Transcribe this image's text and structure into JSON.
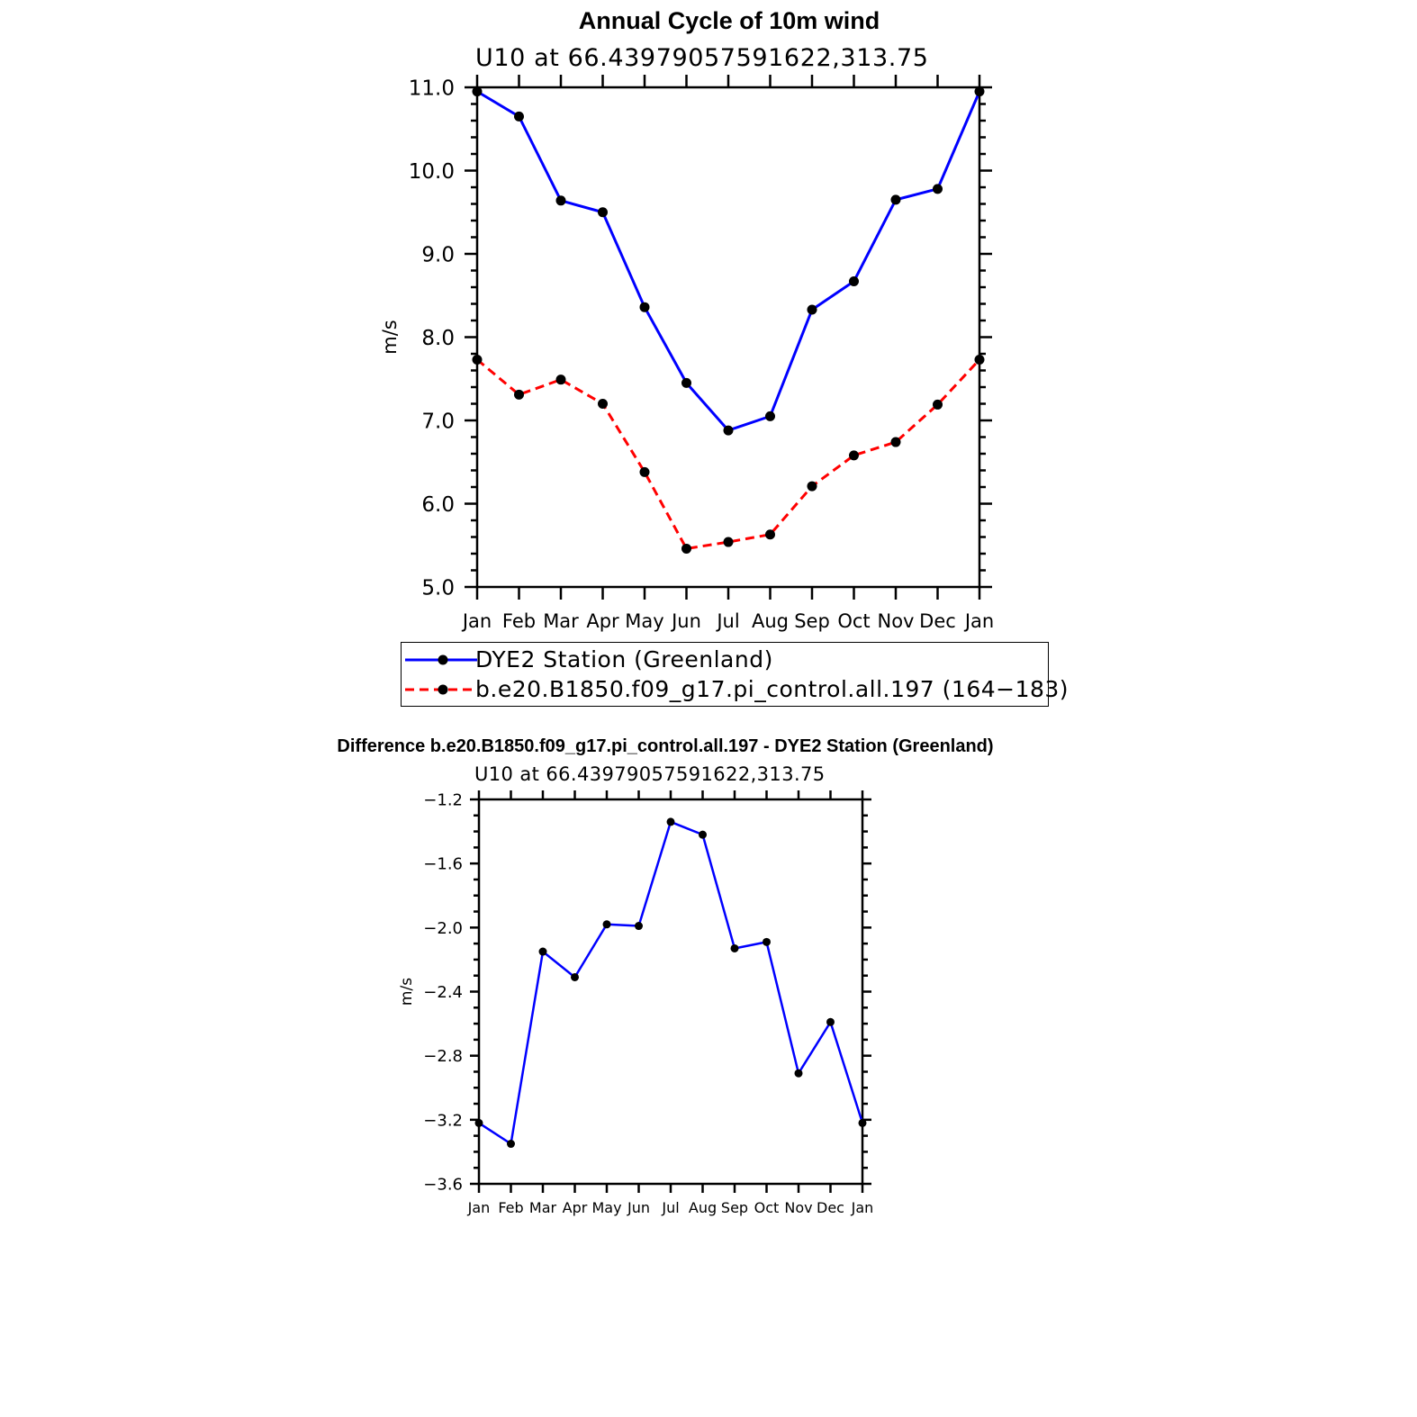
{
  "chart_data": [
    {
      "type": "line",
      "title": "Annual Cycle of 10m wind",
      "subtitle": "U10 at 66.43979057591622,313.75",
      "xlabel": "",
      "ylabel": "m/s",
      "categories": [
        "Jan",
        "Feb",
        "Mar",
        "Apr",
        "May",
        "Jun",
        "Jul",
        "Aug",
        "Sep",
        "Oct",
        "Nov",
        "Dec",
        "Jan"
      ],
      "ylim": [
        5.0,
        11.0
      ],
      "yticks": [
        "5.0",
        "6.0",
        "7.0",
        "8.0",
        "9.0",
        "10.0",
        "11.0"
      ],
      "grid": false,
      "legend_position": "bottom",
      "series": [
        {
          "name": "DYE2 Station (Greenland)",
          "color": "#0000ff",
          "style": "solid",
          "values": [
            10.95,
            10.65,
            9.64,
            9.5,
            8.36,
            7.45,
            6.88,
            7.05,
            8.33,
            8.67,
            9.65,
            9.78,
            10.95
          ]
        },
        {
          "name": "b.e20.B1850.f09_g17.pi_control.all.197 (164−183)",
          "color": "#ff0000",
          "style": "dashed",
          "values": [
            7.73,
            7.31,
            7.49,
            7.2,
            6.38,
            5.46,
            5.54,
            5.63,
            6.21,
            6.58,
            6.74,
            7.19,
            7.73
          ]
        }
      ]
    },
    {
      "type": "line",
      "title": "Difference b.e20.B1850.f09_g17.pi_control.all.197 - DYE2 Station (Greenland)",
      "subtitle": "U10 at 66.43979057591622,313.75",
      "xlabel": "",
      "ylabel": "m/s",
      "categories": [
        "Jan",
        "Feb",
        "Mar",
        "Apr",
        "May",
        "Jun",
        "Jul",
        "Aug",
        "Sep",
        "Oct",
        "Nov",
        "Dec",
        "Jan"
      ],
      "ylim": [
        -3.6,
        -1.2
      ],
      "yticks": [
        "−3.6",
        "−3.2",
        "−2.8",
        "−2.4",
        "−2.0",
        "−1.6",
        "−1.2"
      ],
      "grid": false,
      "legend_position": "none",
      "series": [
        {
          "color": "#0000ff",
          "style": "solid",
          "values": [
            -3.22,
            -3.35,
            -2.15,
            -2.31,
            -1.98,
            -1.99,
            -1.34,
            -1.42,
            -2.13,
            -2.09,
            -2.91,
            -2.59,
            -3.22
          ]
        }
      ]
    }
  ]
}
